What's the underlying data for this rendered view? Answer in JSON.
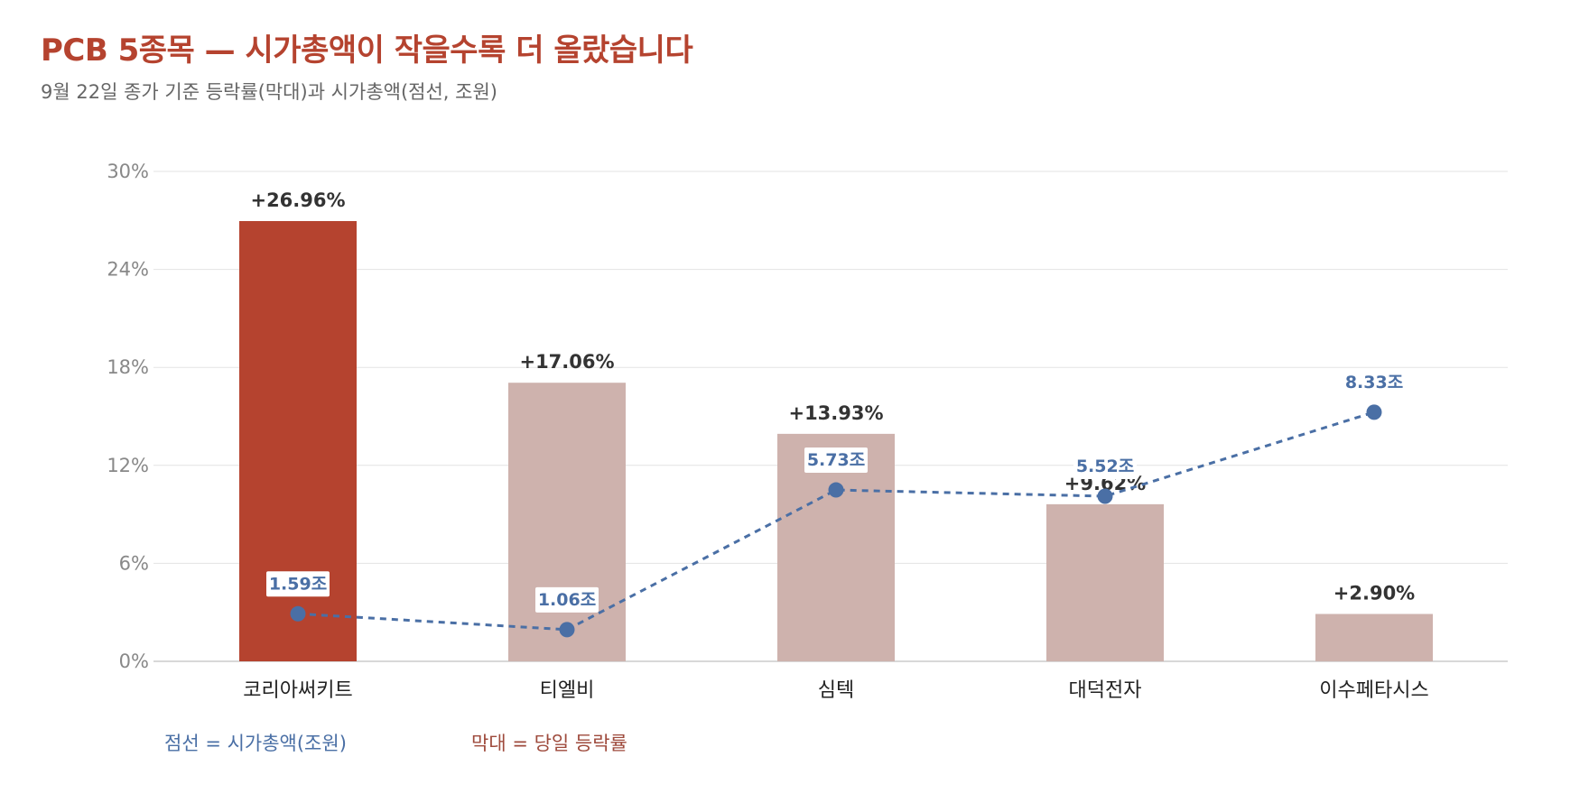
{
  "title": "PCB 5종목 — 시가총액이 작을수록 더 올랐습니다",
  "subtitle": "9월 22일 종가 기준 등락률(막대)과 시가총액(점선, 조원)",
  "legend": {
    "line_label": "점선 = 시가총액(조원)",
    "bar_label": "막대 = 당일 등락률"
  },
  "colors": {
    "title": "#b5432f",
    "highlight_bar": "#b5432f",
    "bar": "#ceb2ad",
    "line": "#4a6fa5",
    "grid": "#e3e3e3",
    "axis": "#cccccc",
    "tick_text": "#888888",
    "value_text": "#333333"
  },
  "chart_data": {
    "type": "bar",
    "categories": [
      "코리아써키트",
      "티엘비",
      "심텍",
      "대덕전자",
      "이수페타시스"
    ],
    "y_ticks": [
      "0%",
      "6%",
      "12%",
      "18%",
      "24%",
      "30%"
    ],
    "ylim": [
      0,
      30
    ],
    "grid": true,
    "highlight_index": 0,
    "series": [
      {
        "name": "당일 등락률",
        "kind": "bar",
        "values": [
          26.96,
          17.06,
          13.93,
          9.62,
          2.9
        ],
        "labels": [
          "+26.96%",
          "+17.06%",
          "+13.93%",
          "+9.62%",
          "+2.90%"
        ]
      },
      {
        "name": "시가총액(조원)",
        "kind": "line",
        "style": "dashed",
        "values": [
          1.59,
          1.06,
          5.73,
          5.52,
          8.33
        ],
        "labels": [
          "1.59조",
          "1.06조",
          "5.73조",
          "5.52조",
          "8.33조"
        ]
      }
    ]
  }
}
